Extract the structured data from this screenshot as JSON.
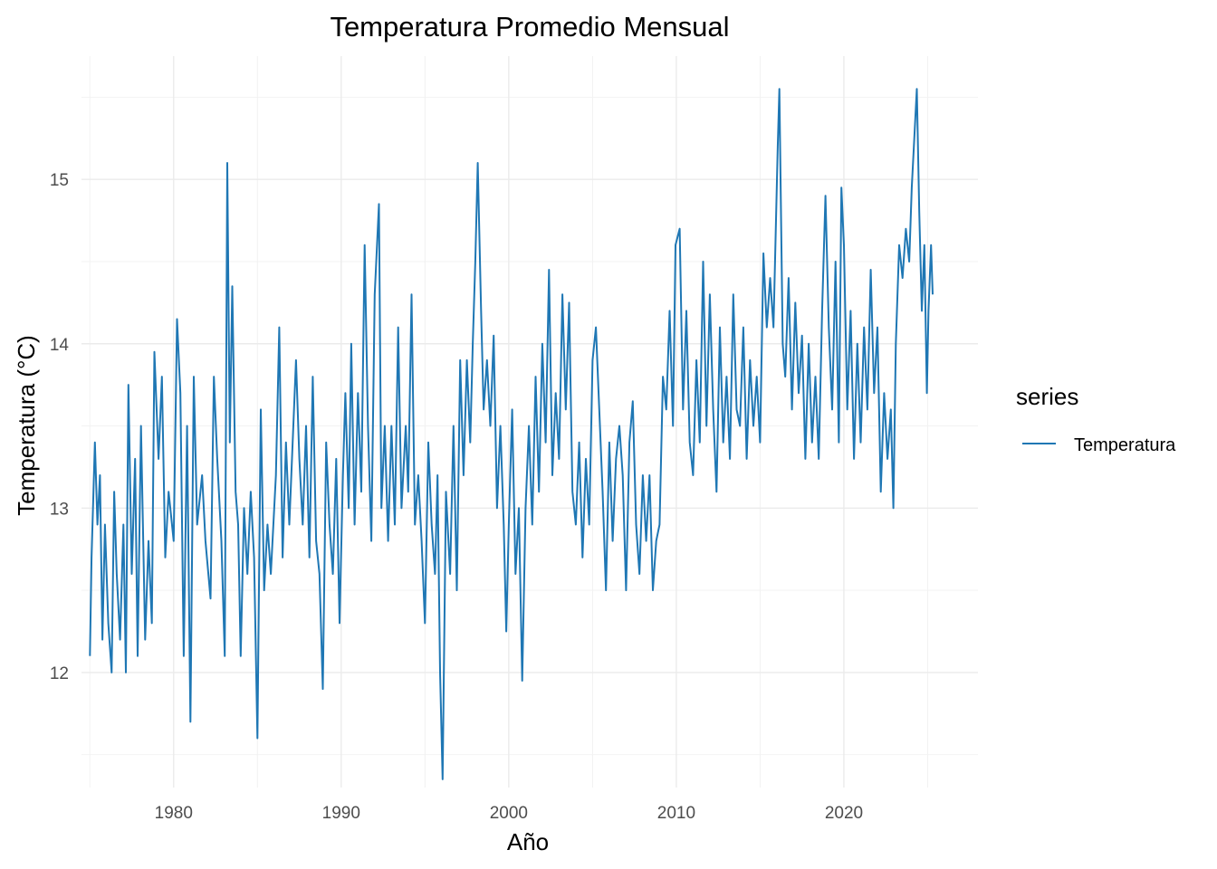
{
  "chart_data": {
    "type": "line",
    "title": "Temperatura Promedio Mensual",
    "xlabel": "Año",
    "ylabel": "Temperatura (°C)",
    "xlim": [
      1974.5,
      2028.0
    ],
    "ylim": [
      11.3,
      15.75
    ],
    "x_ticks": [
      1980,
      1990,
      2000,
      2010,
      2020
    ],
    "y_ticks": [
      12,
      13,
      14,
      15
    ],
    "grid": true,
    "legend": {
      "title": "series",
      "position": "right"
    },
    "series": [
      {
        "name": "Temperatura",
        "color": "#1f77b4",
        "points": [
          [
            1975.0,
            12.1
          ],
          [
            1975.1,
            12.7
          ],
          [
            1975.3,
            13.4
          ],
          [
            1975.45,
            12.9
          ],
          [
            1975.6,
            13.2
          ],
          [
            1975.75,
            12.2
          ],
          [
            1975.9,
            12.9
          ],
          [
            1976.1,
            12.3
          ],
          [
            1976.3,
            12.0
          ],
          [
            1976.45,
            13.1
          ],
          [
            1976.6,
            12.6
          ],
          [
            1976.8,
            12.2
          ],
          [
            1977.0,
            12.9
          ],
          [
            1977.15,
            12.0
          ],
          [
            1977.3,
            13.75
          ],
          [
            1977.5,
            12.6
          ],
          [
            1977.7,
            13.3
          ],
          [
            1977.85,
            12.1
          ],
          [
            1978.05,
            13.5
          ],
          [
            1978.3,
            12.2
          ],
          [
            1978.5,
            12.8
          ],
          [
            1978.7,
            12.3
          ],
          [
            1978.85,
            13.95
          ],
          [
            1979.1,
            13.3
          ],
          [
            1979.3,
            13.8
          ],
          [
            1979.5,
            12.7
          ],
          [
            1979.7,
            13.1
          ],
          [
            1980.0,
            12.8
          ],
          [
            1980.2,
            14.15
          ],
          [
            1980.4,
            13.7
          ],
          [
            1980.6,
            12.1
          ],
          [
            1980.8,
            13.5
          ],
          [
            1981.0,
            11.7
          ],
          [
            1981.2,
            13.8
          ],
          [
            1981.4,
            12.9
          ],
          [
            1981.7,
            13.2
          ],
          [
            1981.9,
            12.8
          ],
          [
            1982.2,
            12.45
          ],
          [
            1982.4,
            13.8
          ],
          [
            1982.6,
            13.3
          ],
          [
            1982.85,
            12.8
          ],
          [
            1983.05,
            12.1
          ],
          [
            1983.2,
            15.1
          ],
          [
            1983.35,
            13.4
          ],
          [
            1983.5,
            14.35
          ],
          [
            1983.7,
            13.1
          ],
          [
            1983.85,
            12.9
          ],
          [
            1984.0,
            12.1
          ],
          [
            1984.2,
            13.0
          ],
          [
            1984.4,
            12.6
          ],
          [
            1984.6,
            13.1
          ],
          [
            1984.8,
            12.7
          ],
          [
            1985.0,
            11.6
          ],
          [
            1985.2,
            13.6
          ],
          [
            1985.4,
            12.5
          ],
          [
            1985.6,
            12.9
          ],
          [
            1985.8,
            12.6
          ],
          [
            1986.1,
            13.2
          ],
          [
            1986.3,
            14.1
          ],
          [
            1986.5,
            12.7
          ],
          [
            1986.7,
            13.4
          ],
          [
            1986.9,
            12.9
          ],
          [
            1987.1,
            13.4
          ],
          [
            1987.3,
            13.9
          ],
          [
            1987.5,
            13.3
          ],
          [
            1987.7,
            12.9
          ],
          [
            1987.9,
            13.5
          ],
          [
            1988.1,
            12.7
          ],
          [
            1988.3,
            13.8
          ],
          [
            1988.5,
            12.8
          ],
          [
            1988.7,
            12.6
          ],
          [
            1988.9,
            11.9
          ],
          [
            1989.1,
            13.4
          ],
          [
            1989.3,
            12.9
          ],
          [
            1989.5,
            12.6
          ],
          [
            1989.7,
            13.3
          ],
          [
            1989.9,
            12.3
          ],
          [
            1990.1,
            13.2
          ],
          [
            1990.25,
            13.7
          ],
          [
            1990.45,
            13.0
          ],
          [
            1990.6,
            14.0
          ],
          [
            1990.8,
            12.9
          ],
          [
            1991.0,
            13.7
          ],
          [
            1991.2,
            13.1
          ],
          [
            1991.4,
            14.6
          ],
          [
            1991.6,
            13.5
          ],
          [
            1991.8,
            12.8
          ],
          [
            1992.0,
            14.3
          ],
          [
            1992.25,
            14.85
          ],
          [
            1992.4,
            13.0
          ],
          [
            1992.6,
            13.5
          ],
          [
            1992.8,
            12.8
          ],
          [
            1993.0,
            13.5
          ],
          [
            1993.2,
            12.9
          ],
          [
            1993.4,
            14.1
          ],
          [
            1993.6,
            13.0
          ],
          [
            1993.85,
            13.5
          ],
          [
            1994.0,
            13.1
          ],
          [
            1994.2,
            14.3
          ],
          [
            1994.4,
            12.9
          ],
          [
            1994.6,
            13.2
          ],
          [
            1994.8,
            12.8
          ],
          [
            1995.0,
            12.3
          ],
          [
            1995.2,
            13.4
          ],
          [
            1995.4,
            12.9
          ],
          [
            1995.6,
            12.6
          ],
          [
            1995.75,
            13.2
          ],
          [
            1995.9,
            12.0
          ],
          [
            1996.05,
            11.35
          ],
          [
            1996.25,
            13.1
          ],
          [
            1996.5,
            12.6
          ],
          [
            1996.7,
            13.5
          ],
          [
            1996.9,
            12.5
          ],
          [
            1997.1,
            13.9
          ],
          [
            1997.3,
            13.2
          ],
          [
            1997.5,
            13.9
          ],
          [
            1997.7,
            13.4
          ],
          [
            1997.85,
            14.0
          ],
          [
            1998.0,
            14.5
          ],
          [
            1998.15,
            15.1
          ],
          [
            1998.35,
            14.2
          ],
          [
            1998.5,
            13.6
          ],
          [
            1998.7,
            13.9
          ],
          [
            1998.9,
            13.5
          ],
          [
            1999.1,
            14.05
          ],
          [
            1999.3,
            13.0
          ],
          [
            1999.5,
            13.5
          ],
          [
            1999.7,
            12.9
          ],
          [
            1999.85,
            12.25
          ],
          [
            2000.0,
            12.9
          ],
          [
            2000.2,
            13.6
          ],
          [
            2000.4,
            12.6
          ],
          [
            2000.6,
            13.0
          ],
          [
            2000.8,
            11.95
          ],
          [
            2001.0,
            13.0
          ],
          [
            2001.2,
            13.5
          ],
          [
            2001.4,
            12.9
          ],
          [
            2001.6,
            13.8
          ],
          [
            2001.8,
            13.1
          ],
          [
            2002.0,
            14.0
          ],
          [
            2002.2,
            13.4
          ],
          [
            2002.4,
            14.45
          ],
          [
            2002.6,
            13.2
          ],
          [
            2002.8,
            13.7
          ],
          [
            2003.0,
            13.3
          ],
          [
            2003.2,
            14.3
          ],
          [
            2003.4,
            13.6
          ],
          [
            2003.6,
            14.25
          ],
          [
            2003.8,
            13.1
          ],
          [
            2004.0,
            12.9
          ],
          [
            2004.2,
            13.4
          ],
          [
            2004.4,
            12.7
          ],
          [
            2004.6,
            13.3
          ],
          [
            2004.8,
            12.9
          ],
          [
            2005.0,
            13.9
          ],
          [
            2005.2,
            14.1
          ],
          [
            2005.4,
            13.6
          ],
          [
            2005.6,
            13.1
          ],
          [
            2005.8,
            12.5
          ],
          [
            2006.0,
            13.4
          ],
          [
            2006.2,
            12.8
          ],
          [
            2006.4,
            13.3
          ],
          [
            2006.6,
            13.5
          ],
          [
            2006.8,
            13.2
          ],
          [
            2007.0,
            12.5
          ],
          [
            2007.2,
            13.4
          ],
          [
            2007.4,
            13.65
          ],
          [
            2007.6,
            12.9
          ],
          [
            2007.8,
            12.6
          ],
          [
            2008.0,
            13.2
          ],
          [
            2008.2,
            12.8
          ],
          [
            2008.4,
            13.2
          ],
          [
            2008.6,
            12.5
          ],
          [
            2008.8,
            12.8
          ],
          [
            2009.0,
            12.9
          ],
          [
            2009.2,
            13.8
          ],
          [
            2009.4,
            13.6
          ],
          [
            2009.6,
            14.2
          ],
          [
            2009.8,
            13.5
          ],
          [
            2009.95,
            14.6
          ],
          [
            2010.2,
            14.7
          ],
          [
            2010.4,
            13.6
          ],
          [
            2010.6,
            14.2
          ],
          [
            2010.8,
            13.4
          ],
          [
            2011.0,
            13.2
          ],
          [
            2011.2,
            13.9
          ],
          [
            2011.4,
            13.4
          ],
          [
            2011.6,
            14.5
          ],
          [
            2011.8,
            13.5
          ],
          [
            2012.0,
            14.3
          ],
          [
            2012.2,
            13.6
          ],
          [
            2012.4,
            13.1
          ],
          [
            2012.6,
            14.1
          ],
          [
            2012.8,
            13.4
          ],
          [
            2013.0,
            13.8
          ],
          [
            2013.2,
            13.3
          ],
          [
            2013.4,
            14.3
          ],
          [
            2013.6,
            13.6
          ],
          [
            2013.8,
            13.5
          ],
          [
            2014.0,
            14.1
          ],
          [
            2014.2,
            13.3
          ],
          [
            2014.4,
            13.9
          ],
          [
            2014.6,
            13.5
          ],
          [
            2014.8,
            13.8
          ],
          [
            2015.0,
            13.4
          ],
          [
            2015.2,
            14.55
          ],
          [
            2015.4,
            14.1
          ],
          [
            2015.6,
            14.4
          ],
          [
            2015.8,
            14.1
          ],
          [
            2016.05,
            15.2
          ],
          [
            2016.15,
            15.55
          ],
          [
            2016.35,
            14.0
          ],
          [
            2016.5,
            13.8
          ],
          [
            2016.7,
            14.4
          ],
          [
            2016.9,
            13.6
          ],
          [
            2017.1,
            14.25
          ],
          [
            2017.3,
            13.7
          ],
          [
            2017.5,
            14.05
          ],
          [
            2017.7,
            13.3
          ],
          [
            2017.9,
            14.0
          ],
          [
            2018.1,
            13.4
          ],
          [
            2018.3,
            13.8
          ],
          [
            2018.5,
            13.3
          ],
          [
            2018.7,
            14.2
          ],
          [
            2018.9,
            14.9
          ],
          [
            2019.1,
            14.1
          ],
          [
            2019.3,
            13.6
          ],
          [
            2019.5,
            14.5
          ],
          [
            2019.7,
            13.4
          ],
          [
            2019.85,
            14.95
          ],
          [
            2020.0,
            14.6
          ],
          [
            2020.2,
            13.6
          ],
          [
            2020.4,
            14.2
          ],
          [
            2020.6,
            13.3
          ],
          [
            2020.8,
            14.0
          ],
          [
            2021.0,
            13.4
          ],
          [
            2021.2,
            14.1
          ],
          [
            2021.4,
            13.6
          ],
          [
            2021.6,
            14.45
          ],
          [
            2021.8,
            13.7
          ],
          [
            2022.0,
            14.1
          ],
          [
            2022.2,
            13.1
          ],
          [
            2022.4,
            13.7
          ],
          [
            2022.6,
            13.3
          ],
          [
            2022.8,
            13.6
          ],
          [
            2022.95,
            13.0
          ],
          [
            2023.1,
            14.0
          ],
          [
            2023.3,
            14.6
          ],
          [
            2023.5,
            14.4
          ],
          [
            2023.7,
            14.7
          ],
          [
            2023.9,
            14.5
          ],
          [
            2024.05,
            14.95
          ],
          [
            2024.2,
            15.25
          ],
          [
            2024.35,
            15.55
          ],
          [
            2024.5,
            14.8
          ],
          [
            2024.65,
            14.2
          ],
          [
            2024.8,
            14.6
          ],
          [
            2024.95,
            13.7
          ],
          [
            2025.05,
            14.2
          ],
          [
            2025.2,
            14.6
          ],
          [
            2025.3,
            14.3
          ]
        ]
      }
    ]
  }
}
